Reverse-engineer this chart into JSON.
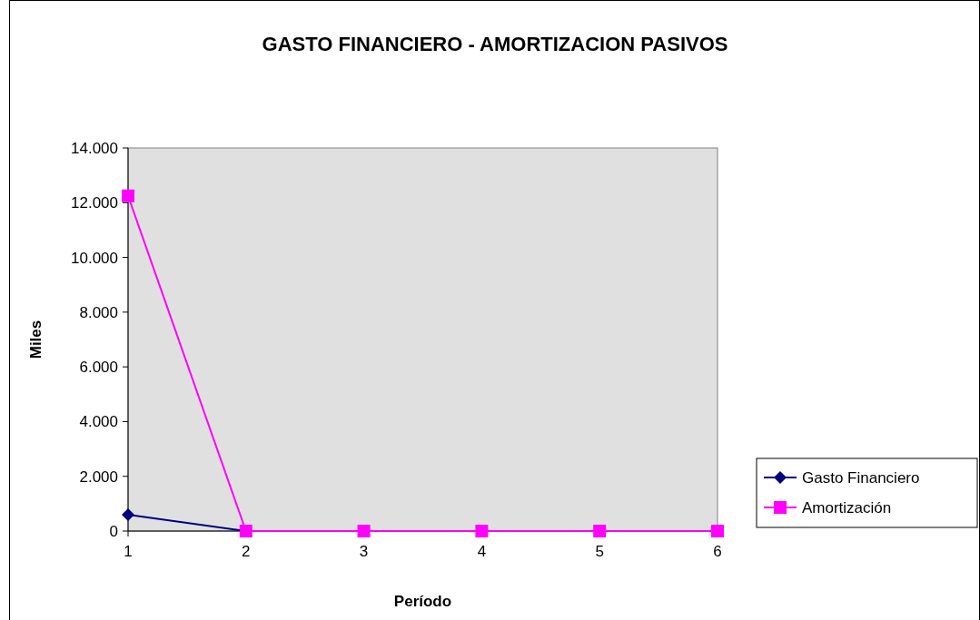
{
  "chart_data": {
    "type": "line",
    "title": "GASTO FINANCIERO - AMORTIZACION PASIVOS",
    "xlabel": "Período",
    "ylabel": "Miles",
    "categories": [
      "1",
      "2",
      "3",
      "4",
      "5",
      "6"
    ],
    "series": [
      {
        "name": "Gasto Financiero",
        "color": "#000080",
        "marker": "diamond",
        "values": [
          600,
          0,
          null,
          null,
          null,
          null
        ]
      },
      {
        "name": "Amortización",
        "color": "#ff00ff",
        "marker": "square",
        "values": [
          12250,
          0,
          0,
          0,
          0,
          0
        ]
      }
    ],
    "ylim": [
      0,
      14000
    ],
    "yticks": [
      {
        "value": 0,
        "label": "0"
      },
      {
        "value": 2000,
        "label": "2.000"
      },
      {
        "value": 4000,
        "label": "4.000"
      },
      {
        "value": 6000,
        "label": "6.000"
      },
      {
        "value": 8000,
        "label": "8.000"
      },
      {
        "value": 10000,
        "label": "10.000"
      },
      {
        "value": 12000,
        "label": "12.000"
      },
      {
        "value": 14000,
        "label": "14.000"
      }
    ],
    "grid": false,
    "legend": "right"
  }
}
